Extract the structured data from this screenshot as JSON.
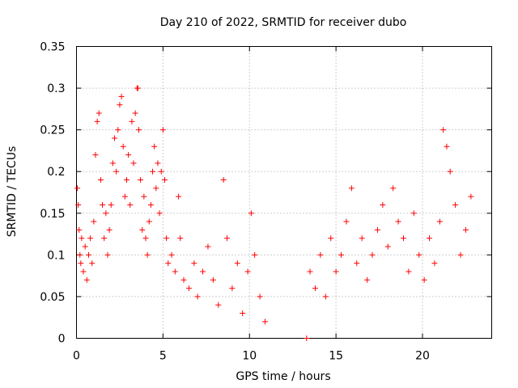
{
  "chart_data": {
    "type": "scatter",
    "title": "Day 210 of 2022, SRMTID for receiver dubo",
    "xlabel": "GPS time / hours",
    "ylabel": "SRMTID / TECUs",
    "xlim": [
      0,
      24
    ],
    "ylim": [
      0,
      0.35
    ],
    "x_ticks": [
      0,
      5,
      10,
      15,
      20
    ],
    "x_tick_labels": [
      "0",
      "5",
      "10",
      "15",
      "20"
    ],
    "y_ticks": [
      0,
      0.05,
      0.1,
      0.15,
      0.2,
      0.25,
      0.3,
      0.35
    ],
    "y_tick_labels": [
      "0",
      "0.05",
      "0.1",
      "0.15",
      "0.2",
      "0.25",
      "0.3",
      "0.35"
    ],
    "grid": true,
    "marker": "+",
    "color": "#ff0000",
    "series": [
      {
        "name": "SRMTID",
        "points": [
          [
            0.05,
            0.18
          ],
          [
            0.1,
            0.16
          ],
          [
            0.15,
            0.13
          ],
          [
            0.2,
            0.1
          ],
          [
            0.25,
            0.09
          ],
          [
            0.3,
            0.12
          ],
          [
            0.4,
            0.08
          ],
          [
            0.5,
            0.11
          ],
          [
            0.6,
            0.07
          ],
          [
            0.7,
            0.1
          ],
          [
            0.8,
            0.12
          ],
          [
            0.9,
            0.09
          ],
          [
            1.0,
            0.14
          ],
          [
            1.1,
            0.22
          ],
          [
            1.2,
            0.26
          ],
          [
            1.3,
            0.27
          ],
          [
            1.4,
            0.19
          ],
          [
            1.5,
            0.16
          ],
          [
            1.6,
            0.12
          ],
          [
            1.7,
            0.15
          ],
          [
            1.8,
            0.1
          ],
          [
            1.9,
            0.13
          ],
          [
            2.0,
            0.16
          ],
          [
            2.1,
            0.21
          ],
          [
            2.2,
            0.24
          ],
          [
            2.3,
            0.2
          ],
          [
            2.4,
            0.25
          ],
          [
            2.5,
            0.28
          ],
          [
            2.6,
            0.29
          ],
          [
            2.7,
            0.23
          ],
          [
            2.8,
            0.17
          ],
          [
            2.9,
            0.19
          ],
          [
            3.0,
            0.22
          ],
          [
            3.1,
            0.16
          ],
          [
            3.2,
            0.26
          ],
          [
            3.3,
            0.21
          ],
          [
            3.4,
            0.27
          ],
          [
            3.5,
            0.3
          ],
          [
            3.55,
            0.3
          ],
          [
            3.6,
            0.25
          ],
          [
            3.7,
            0.19
          ],
          [
            3.8,
            0.13
          ],
          [
            3.9,
            0.17
          ],
          [
            4.0,
            0.12
          ],
          [
            4.1,
            0.1
          ],
          [
            4.2,
            0.14
          ],
          [
            4.3,
            0.16
          ],
          [
            4.4,
            0.2
          ],
          [
            4.5,
            0.23
          ],
          [
            4.6,
            0.18
          ],
          [
            4.7,
            0.21
          ],
          [
            4.8,
            0.15
          ],
          [
            4.9,
            0.2
          ],
          [
            5.0,
            0.25
          ],
          [
            5.1,
            0.19
          ],
          [
            5.2,
            0.12
          ],
          [
            5.3,
            0.09
          ],
          [
            5.5,
            0.1
          ],
          [
            5.7,
            0.08
          ],
          [
            5.9,
            0.17
          ],
          [
            6.0,
            0.12
          ],
          [
            6.2,
            0.07
          ],
          [
            6.5,
            0.06
          ],
          [
            6.8,
            0.09
          ],
          [
            7.0,
            0.05
          ],
          [
            7.3,
            0.08
          ],
          [
            7.6,
            0.11
          ],
          [
            7.9,
            0.07
          ],
          [
            8.2,
            0.04
          ],
          [
            8.5,
            0.19
          ],
          [
            8.7,
            0.12
          ],
          [
            9.0,
            0.06
          ],
          [
            9.3,
            0.09
          ],
          [
            9.6,
            0.03
          ],
          [
            9.9,
            0.08
          ],
          [
            10.1,
            0.15
          ],
          [
            10.3,
            0.1
          ],
          [
            10.6,
            0.05
          ],
          [
            10.9,
            0.02
          ],
          [
            13.3,
            0.0
          ],
          [
            13.5,
            0.08
          ],
          [
            13.8,
            0.06
          ],
          [
            14.1,
            0.1
          ],
          [
            14.4,
            0.05
          ],
          [
            14.7,
            0.12
          ],
          [
            15.0,
            0.08
          ],
          [
            15.3,
            0.1
          ],
          [
            15.6,
            0.14
          ],
          [
            15.9,
            0.18
          ],
          [
            16.2,
            0.09
          ],
          [
            16.5,
            0.12
          ],
          [
            16.8,
            0.07
          ],
          [
            17.1,
            0.1
          ],
          [
            17.4,
            0.13
          ],
          [
            17.7,
            0.16
          ],
          [
            18.0,
            0.11
          ],
          [
            18.3,
            0.18
          ],
          [
            18.6,
            0.14
          ],
          [
            18.9,
            0.12
          ],
          [
            19.2,
            0.08
          ],
          [
            19.5,
            0.15
          ],
          [
            19.8,
            0.1
          ],
          [
            20.1,
            0.07
          ],
          [
            20.4,
            0.12
          ],
          [
            20.7,
            0.09
          ],
          [
            21.0,
            0.14
          ],
          [
            21.2,
            0.25
          ],
          [
            21.4,
            0.23
          ],
          [
            21.6,
            0.2
          ],
          [
            21.9,
            0.16
          ],
          [
            22.2,
            0.1
          ],
          [
            22.5,
            0.13
          ],
          [
            22.8,
            0.17
          ]
        ]
      }
    ],
    "missing_data_interval_hours": [
      11.0,
      13.3
    ]
  }
}
